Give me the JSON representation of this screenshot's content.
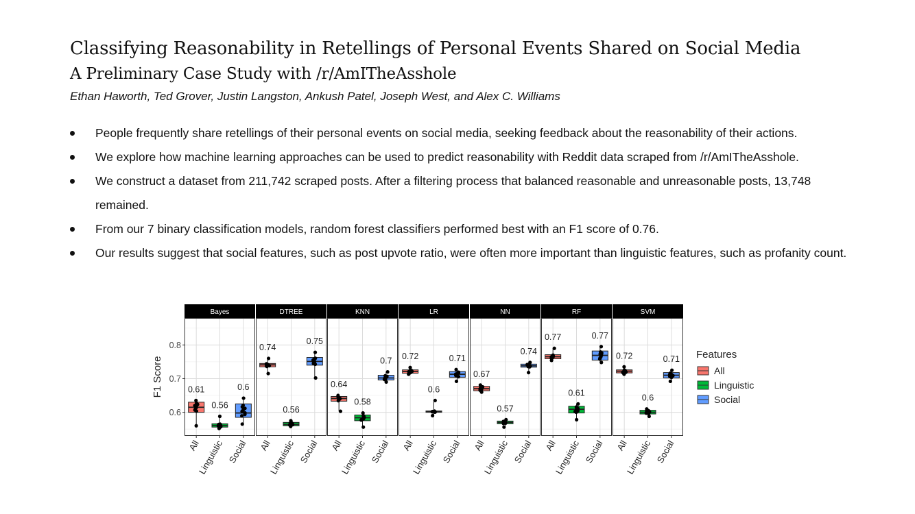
{
  "paper": {
    "title": "Classifying Reasonability in Retellings of Personal Events Shared on Social Media",
    "subtitle": "A Preliminary Case Study with /r/AmITheAsshole",
    "authors": "Ethan Haworth, Ted Grover, Justin Langston, Ankush Patel, Joseph West, and Alex C. Williams",
    "bullets": [
      "People frequently share retellings of their personal events on social media, seeking feedback about the reasonability of their actions.",
      "We explore how machine learning approaches can be used to predict reasonability with Reddit data scraped from /r/AmITheAsshole.",
      "We construct a dataset from 211,742 scraped posts. After a filtering process that balanced reasonable and unreasonable posts, 13,748 remained.",
      "From our 7 binary classification models, random forest classifiers performed best with an F1 score of 0.76.",
      "Our results suggest that social features, such as post upvote ratio, were often more important than linguistic features, such as profanity count."
    ]
  },
  "chart_data": {
    "type": "box",
    "ylabel": "F1 Score",
    "ylim": [
      0.53,
      0.88
    ],
    "yticks": [
      0.6,
      0.7,
      0.8
    ],
    "grid": true,
    "legend": {
      "title": "Features",
      "position": "right"
    },
    "feature_colors": {
      "All": "#f8766d",
      "Linguistic": "#00ba38",
      "Social": "#619cff"
    },
    "categories": [
      "All",
      "Linguistic",
      "Social"
    ],
    "panels": [
      {
        "model": "Bayes",
        "stats": [
          {
            "feature": "All",
            "label": "0.61",
            "min": 0.56,
            "q1": 0.6,
            "median": 0.615,
            "q3": 0.63,
            "max": 0.635
          },
          {
            "feature": "Linguistic",
            "label": "0.56",
            "min": 0.552,
            "q1": 0.556,
            "median": 0.561,
            "q3": 0.566,
            "max": 0.588
          },
          {
            "feature": "Social",
            "label": "0.6",
            "min": 0.565,
            "q1": 0.585,
            "median": 0.598,
            "q3": 0.625,
            "max": 0.642
          }
        ]
      },
      {
        "model": "DTREE",
        "stats": [
          {
            "feature": "All",
            "label": "0.74",
            "min": 0.715,
            "q1": 0.735,
            "median": 0.741,
            "q3": 0.745,
            "max": 0.76
          },
          {
            "feature": "Linguistic",
            "label": "0.56",
            "min": 0.558,
            "q1": 0.56,
            "median": 0.564,
            "q3": 0.57,
            "max": 0.575
          },
          {
            "feature": "Social",
            "label": "0.75",
            "min": 0.702,
            "q1": 0.74,
            "median": 0.751,
            "q3": 0.763,
            "max": 0.778
          }
        ]
      },
      {
        "model": "KNN",
        "stats": [
          {
            "feature": "All",
            "label": "0.64",
            "min": 0.603,
            "q1": 0.633,
            "median": 0.641,
            "q3": 0.647,
            "max": 0.65
          },
          {
            "feature": "Linguistic",
            "label": "0.58",
            "min": 0.556,
            "q1": 0.575,
            "median": 0.584,
            "q3": 0.592,
            "max": 0.598
          },
          {
            "feature": "Social",
            "label": "0.7",
            "min": 0.69,
            "q1": 0.696,
            "median": 0.702,
            "q3": 0.71,
            "max": 0.72
          }
        ]
      },
      {
        "model": "LR",
        "stats": [
          {
            "feature": "All",
            "label": "0.72",
            "min": 0.713,
            "q1": 0.716,
            "median": 0.721,
            "q3": 0.726,
            "max": 0.733
          },
          {
            "feature": "Linguistic",
            "label": "0.6",
            "min": 0.59,
            "q1": 0.6,
            "median": 0.602,
            "q3": 0.604,
            "max": 0.635
          },
          {
            "feature": "Social",
            "label": "0.71",
            "min": 0.692,
            "q1": 0.704,
            "median": 0.713,
            "q3": 0.721,
            "max": 0.727
          }
        ]
      },
      {
        "model": "NN",
        "stats": [
          {
            "feature": "All",
            "label": "0.67",
            "min": 0.66,
            "q1": 0.664,
            "median": 0.67,
            "q3": 0.677,
            "max": 0.681
          },
          {
            "feature": "Linguistic",
            "label": "0.57",
            "min": 0.556,
            "q1": 0.566,
            "median": 0.57,
            "q3": 0.574,
            "max": 0.578
          },
          {
            "feature": "Social",
            "label": "0.74",
            "min": 0.718,
            "q1": 0.734,
            "median": 0.738,
            "q3": 0.743,
            "max": 0.748
          }
        ]
      },
      {
        "model": "RF",
        "stats": [
          {
            "feature": "All",
            "label": "0.77",
            "min": 0.754,
            "q1": 0.759,
            "median": 0.765,
            "q3": 0.771,
            "max": 0.79
          },
          {
            "feature": "Linguistic",
            "label": "0.61",
            "min": 0.578,
            "q1": 0.598,
            "median": 0.609,
            "q3": 0.618,
            "max": 0.625
          },
          {
            "feature": "Social",
            "label": "0.77",
            "min": 0.748,
            "q1": 0.755,
            "median": 0.769,
            "q3": 0.782,
            "max": 0.795
          }
        ]
      },
      {
        "model": "SVM",
        "stats": [
          {
            "feature": "All",
            "label": "0.72",
            "min": 0.713,
            "q1": 0.717,
            "median": 0.722,
            "q3": 0.726,
            "max": 0.735
          },
          {
            "feature": "Linguistic",
            "label": "0.6",
            "min": 0.588,
            "q1": 0.595,
            "median": 0.6,
            "q3": 0.606,
            "max": 0.61
          },
          {
            "feature": "Social",
            "label": "0.71",
            "min": 0.692,
            "q1": 0.702,
            "median": 0.71,
            "q3": 0.718,
            "max": 0.725
          }
        ]
      }
    ]
  }
}
